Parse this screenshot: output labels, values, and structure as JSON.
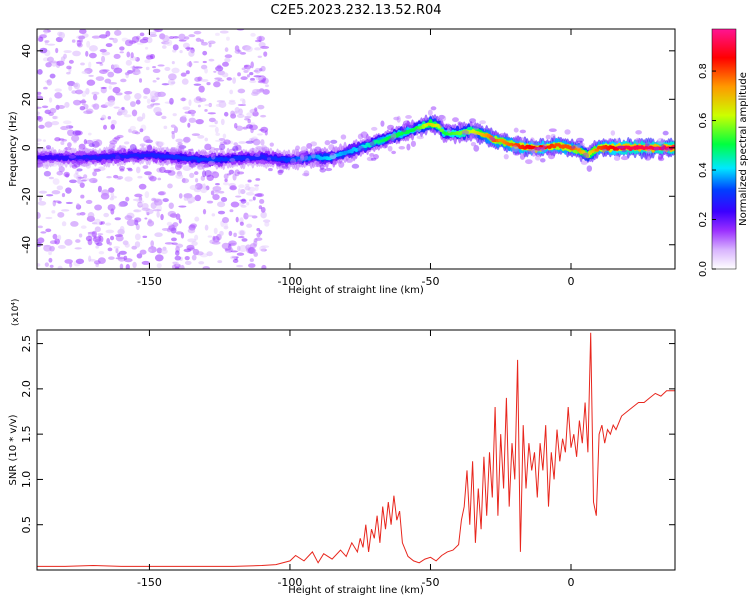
{
  "figure": {
    "title": "C2E5.2023.232.13.52.R04"
  },
  "chart_data": [
    {
      "type": "heatmap",
      "title": "C2E5.2023.232.13.52.R04",
      "xlabel": "Height of straight line (km)",
      "ylabel": "Frequency (Hz)",
      "xlim": [
        -190,
        37
      ],
      "ylim": [
        -50,
        49
      ],
      "xticks": [
        -150,
        -100,
        -50,
        0
      ],
      "yticks": [
        -40,
        -20,
        0,
        20,
        40
      ],
      "grid": false,
      "colorbar": {
        "label": "Normalized spectral amplitude",
        "range": [
          0,
          0.97
        ],
        "ticks": [
          0.0,
          0.2,
          0.4,
          0.6,
          0.8
        ],
        "colormap": [
          "#ffffff",
          "#d8b4fe",
          "#9b30ff",
          "#3a00ff",
          "#0040ff",
          "#00e8ff",
          "#00ff40",
          "#ccff00",
          "#ff9900",
          "#ff0000",
          "#ff1493"
        ]
      },
      "ridge": {
        "x": [
          -190,
          -170,
          -150,
          -130,
          -110,
          -100,
          -92,
          -85,
          -80,
          -75,
          -70,
          -65,
          -60,
          -55,
          -50,
          -47,
          -45,
          -40,
          -35,
          -30,
          -27,
          -25,
          -20,
          -15,
          -10,
          -5,
          0,
          3,
          6,
          10,
          15,
          20,
          25,
          30,
          37
        ],
        "y": [
          -4,
          -4,
          -3,
          -5,
          -4,
          -5,
          -4,
          -4,
          -2,
          0,
          2,
          4,
          6,
          8,
          10,
          9,
          6,
          6,
          7,
          5,
          3,
          3,
          1,
          0,
          0,
          1,
          0,
          -1,
          -3,
          0,
          0,
          0,
          0,
          0,
          0
        ],
        "intensity": [
          0.3,
          0.35,
          0.35,
          0.4,
          0.35,
          0.4,
          0.45,
          0.5,
          0.45,
          0.5,
          0.55,
          0.6,
          0.6,
          0.6,
          0.75,
          0.7,
          0.6,
          0.65,
          0.7,
          0.8,
          0.85,
          0.8,
          0.85,
          0.9,
          0.9,
          0.85,
          0.85,
          0.8,
          0.7,
          0.85,
          0.9,
          0.95,
          0.95,
          0.95,
          0.95
        ]
      },
      "noise_region_x": [
        -190,
        -108
      ]
    },
    {
      "type": "line",
      "title": "",
      "xlabel": "Height of straight line (km)",
      "ylabel": "SNR (10 * v/v)",
      "y_multiplier": "(x10⁴)",
      "xlim": [
        -190,
        37
      ],
      "ylim": [
        0,
        2.65
      ],
      "xticks": [
        -150,
        -100,
        -50,
        0
      ],
      "yticks": [
        0.5,
        1.0,
        1.5,
        2.0,
        2.5
      ],
      "grid": false,
      "color": "#e8261d",
      "series": [
        {
          "x": [
            -190,
            -180,
            -170,
            -160,
            -150,
            -140,
            -130,
            -120,
            -110,
            -105,
            -100,
            -98,
            -95,
            -92,
            -90,
            -88,
            -85,
            -82,
            -80,
            -78,
            -76,
            -75,
            -74,
            -73,
            -72,
            -71,
            -70,
            -69,
            -68,
            -67,
            -66,
            -65,
            -64,
            -63,
            -62,
            -61,
            -60,
            -58,
            -56,
            -54,
            -52,
            -50,
            -48,
            -46,
            -44,
            -42,
            -40,
            -39,
            -38,
            -37,
            -36,
            -35,
            -34,
            -33,
            -32,
            -31,
            -30,
            -29,
            -28,
            -27,
            -26,
            -25,
            -24,
            -23,
            -22,
            -21,
            -20,
            -19,
            -18,
            -17,
            -16,
            -15,
            -14,
            -13,
            -12,
            -11,
            -10,
            -9,
            -8,
            -7,
            -6,
            -5,
            -4,
            -3,
            -2,
            -1,
            0,
            1,
            2,
            3,
            4,
            5,
            6,
            7,
            8,
            9,
            10,
            11,
            12,
            13,
            14,
            15,
            16,
            18,
            20,
            22,
            24,
            26,
            28,
            30,
            32,
            34,
            37
          ],
          "y": [
            0.04,
            0.04,
            0.05,
            0.04,
            0.04,
            0.04,
            0.04,
            0.04,
            0.05,
            0.06,
            0.1,
            0.16,
            0.1,
            0.2,
            0.08,
            0.18,
            0.12,
            0.22,
            0.15,
            0.3,
            0.2,
            0.35,
            0.25,
            0.5,
            0.2,
            0.45,
            0.35,
            0.6,
            0.3,
            0.7,
            0.45,
            0.75,
            0.5,
            0.82,
            0.55,
            0.65,
            0.3,
            0.15,
            0.1,
            0.08,
            0.12,
            0.14,
            0.1,
            0.16,
            0.2,
            0.22,
            0.28,
            0.55,
            0.7,
            1.1,
            0.5,
            1.2,
            0.3,
            0.9,
            0.45,
            1.25,
            0.6,
            1.3,
            0.8,
            1.8,
            0.6,
            1.5,
            0.9,
            1.9,
            0.7,
            1.4,
            1.0,
            2.32,
            0.2,
            1.6,
            0.9,
            1.4,
            1.1,
            1.3,
            0.8,
            1.4,
            1.1,
            1.6,
            0.7,
            1.3,
            1.0,
            1.55,
            1.2,
            1.45,
            1.3,
            1.8,
            1.35,
            1.5,
            1.25,
            1.65,
            1.4,
            1.85,
            1.3,
            2.62,
            0.75,
            0.6,
            1.5,
            1.6,
            1.4,
            1.55,
            1.5,
            1.6,
            1.55,
            1.7,
            1.75,
            1.8,
            1.85,
            1.85,
            1.9,
            1.95,
            1.92,
            1.98,
            1.98
          ]
        }
      ]
    }
  ]
}
